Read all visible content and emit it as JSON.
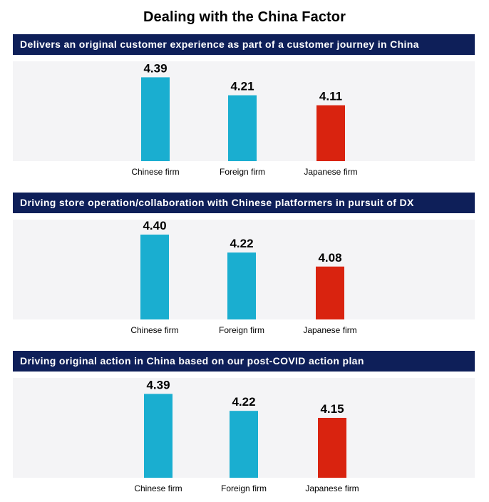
{
  "title": "Dealing with the China Factor",
  "colors": {
    "banner": "#0e1f59",
    "chinese": "#1aaed0",
    "foreign": "#1aaed0",
    "japanese": "#d9230f",
    "plot_bg": "#f4f4f6"
  },
  "chart_data": [
    {
      "type": "bar",
      "title": "Delivers an original customer experience as part of a customer journey in China",
      "categories": [
        "Chinese firm",
        "Foreign firm",
        "Japanese firm"
      ],
      "values": [
        4.39,
        4.21,
        4.11
      ],
      "value_labels": [
        "4.39",
        "4.21",
        "4.11"
      ],
      "bar_colors": [
        "#1aaed0",
        "#1aaed0",
        "#d9230f"
      ],
      "ylim": [
        3.55,
        4.55
      ],
      "grid": false
    },
    {
      "type": "bar",
      "title": "Driving store operation/collaboration with Chinese platformers in pursuit of DX",
      "categories": [
        "Chinese firm",
        "Foreign firm",
        "Japanese firm"
      ],
      "values": [
        4.4,
        4.22,
        4.08
      ],
      "value_labels": [
        "4.40",
        "4.22",
        "4.08"
      ],
      "bar_colors": [
        "#1aaed0",
        "#1aaed0",
        "#d9230f"
      ],
      "ylim": [
        3.55,
        4.55
      ],
      "grid": false
    },
    {
      "type": "bar",
      "title": "Driving original action in China based on our post-COVID action plan",
      "categories": [
        "Chinese firm",
        "Foreign firm",
        "Japanese firm"
      ],
      "values": [
        4.39,
        4.22,
        4.15
      ],
      "value_labels": [
        "4.39",
        "4.22",
        "4.15"
      ],
      "bar_colors": [
        "#1aaed0",
        "#1aaed0",
        "#d9230f"
      ],
      "ylim": [
        3.55,
        4.55
      ],
      "grid": false
    }
  ]
}
